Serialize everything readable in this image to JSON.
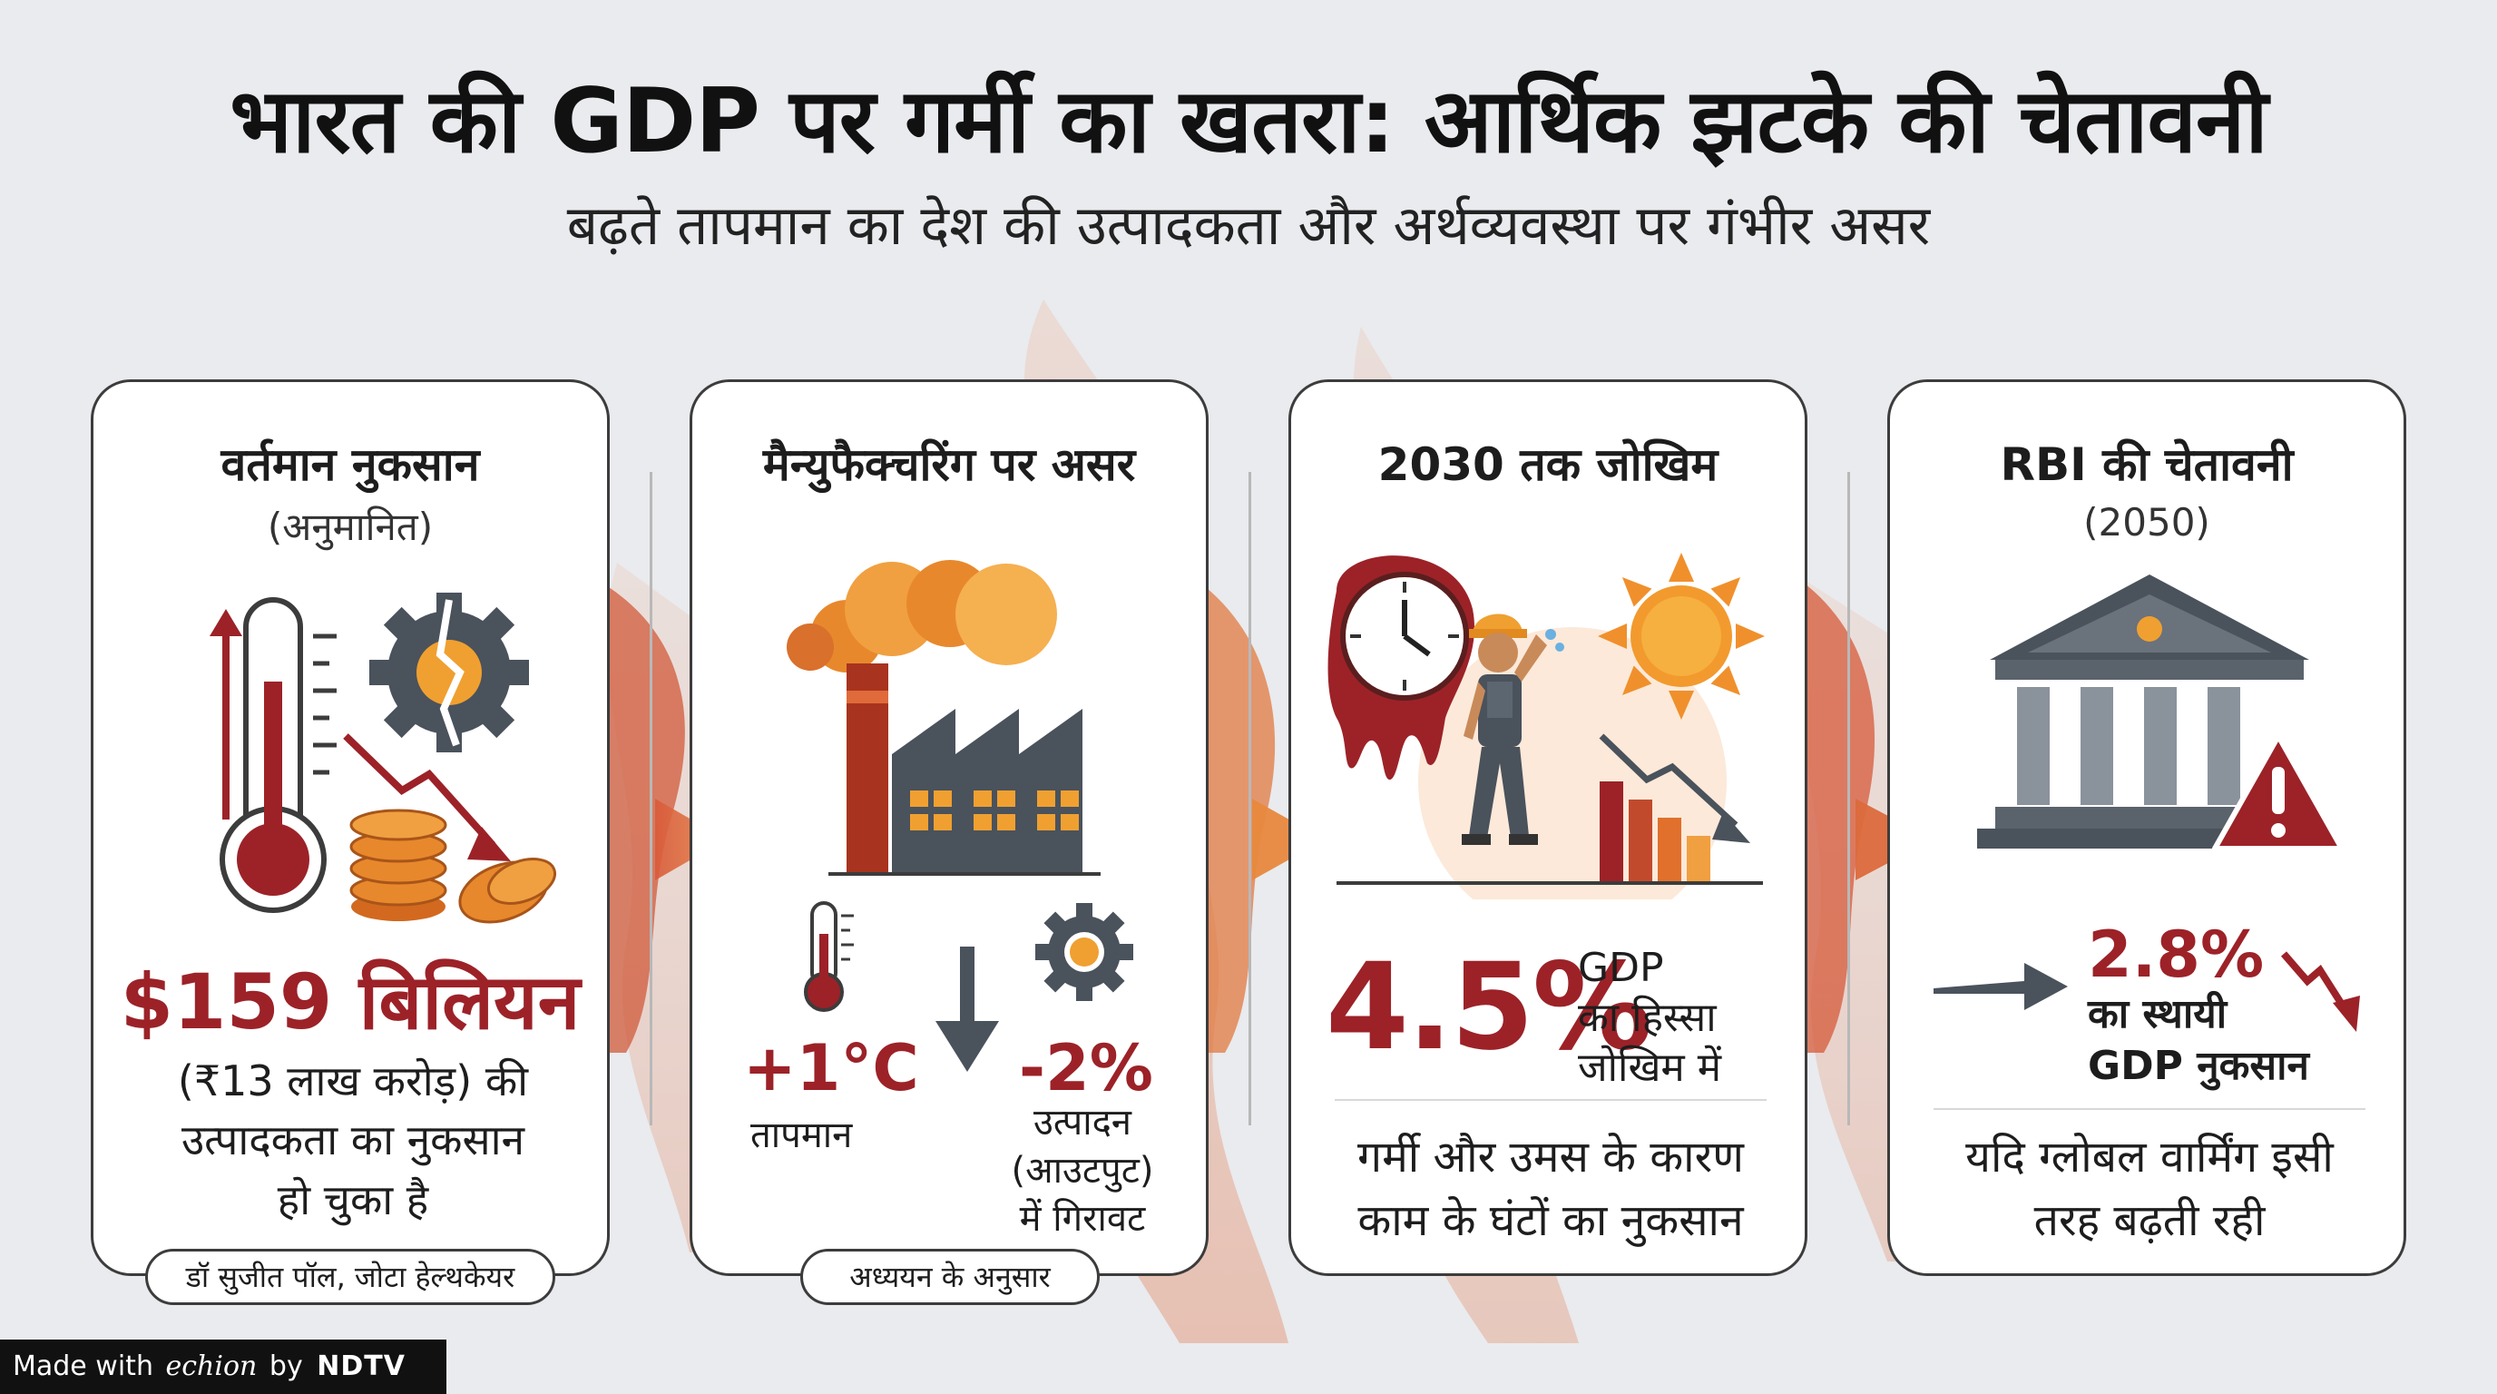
{
  "header": {
    "title": "भारत की GDP पर गर्मी का खतरा: आर्थिक झटके की चेतावनी",
    "subtitle": "बढ़ते तापमान का देश की उत्पादकता और अर्थव्यवस्था पर गंभीर असर"
  },
  "cards": [
    {
      "title": "वर्तमान नुकसान",
      "subtitle": "(अनुमानित)",
      "amount": "$159 बिलियन",
      "desc_lines": [
        "(₹13 लाख करोड़) की",
        "उत्पादकता का नुकसान",
        "हो चुका है"
      ],
      "source": "डॉ सुजीत पॉल, जोटा हेल्थकेयर"
    },
    {
      "title": "मैन्युफैक्चरिंग पर असर",
      "temp_value": "+1°C",
      "temp_label": "तापमान",
      "output_value": "-2%",
      "output_lines": [
        "उत्पादन",
        "(आउटपुट)",
        "में गिरावट"
      ],
      "source": "अध्ययन के अनुसार"
    },
    {
      "title": "2030 तक जोखिम",
      "percent": "4.5%",
      "gdp_lines": [
        "GDP",
        "का हिस्सा",
        "जोखिम में"
      ],
      "desc_lines": [
        "गर्मी और उमस के कारण",
        "काम के घंटों का नुकसान"
      ]
    },
    {
      "title": "RBI की चेतावनी",
      "subtitle": "(2050)",
      "percent": "2.8%",
      "label_lines": [
        "का स्थायी",
        "GDP नुकसान"
      ],
      "desc_lines": [
        "यदि ग्लोबल वार्मिंग इसी",
        "तरह बढ़ती रही"
      ]
    }
  ],
  "footer": {
    "made_with": "Made with",
    "brand": "echion",
    "by": "by",
    "partner": "NDTV"
  },
  "colors": {
    "dark_red": "#9c2228",
    "orange": "#e8882c",
    "slate": "#4a525c",
    "flame": "#e06a3a"
  }
}
